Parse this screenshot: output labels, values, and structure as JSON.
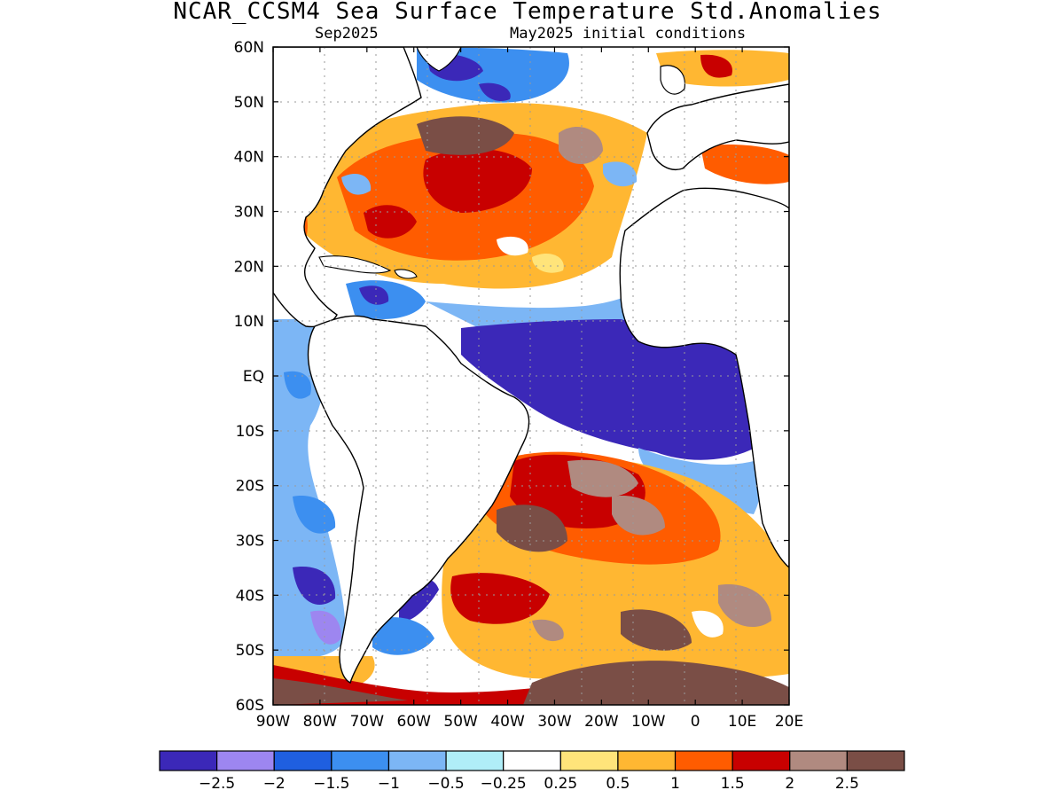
{
  "title": "NCAR_CCSM4 Sea Surface Temperature Std.Anomalies",
  "subtitle_left": "Sep2025",
  "subtitle_right": "May2025 initial conditions",
  "lat_labels": [
    "60N",
    "50N",
    "40N",
    "30N",
    "20N",
    "10N",
    "EQ",
    "10S",
    "20S",
    "30S",
    "40S",
    "50S",
    "60S"
  ],
  "lon_labels": [
    "90W",
    "80W",
    "70W",
    "60W",
    "50W",
    "40W",
    "30W",
    "20W",
    "10W",
    "0",
    "10E",
    "20E"
  ],
  "colorbar": {
    "colors": [
      "#3b28b8",
      "#9d86f0",
      "#1f5fe0",
      "#3c8ff0",
      "#7cb6f5",
      "#b0eef8",
      "#ffffff",
      "#ffe47a",
      "#ffb732",
      "#ff5c00",
      "#c80000",
      "#b08a80",
      "#7a4e46"
    ],
    "labels": [
      "−2.5",
      "−2",
      "−1.5",
      "−1",
      "−0.5",
      "−0.25",
      "0.25",
      "0.5",
      "1",
      "1.5",
      "2",
      "2.5"
    ]
  }
}
